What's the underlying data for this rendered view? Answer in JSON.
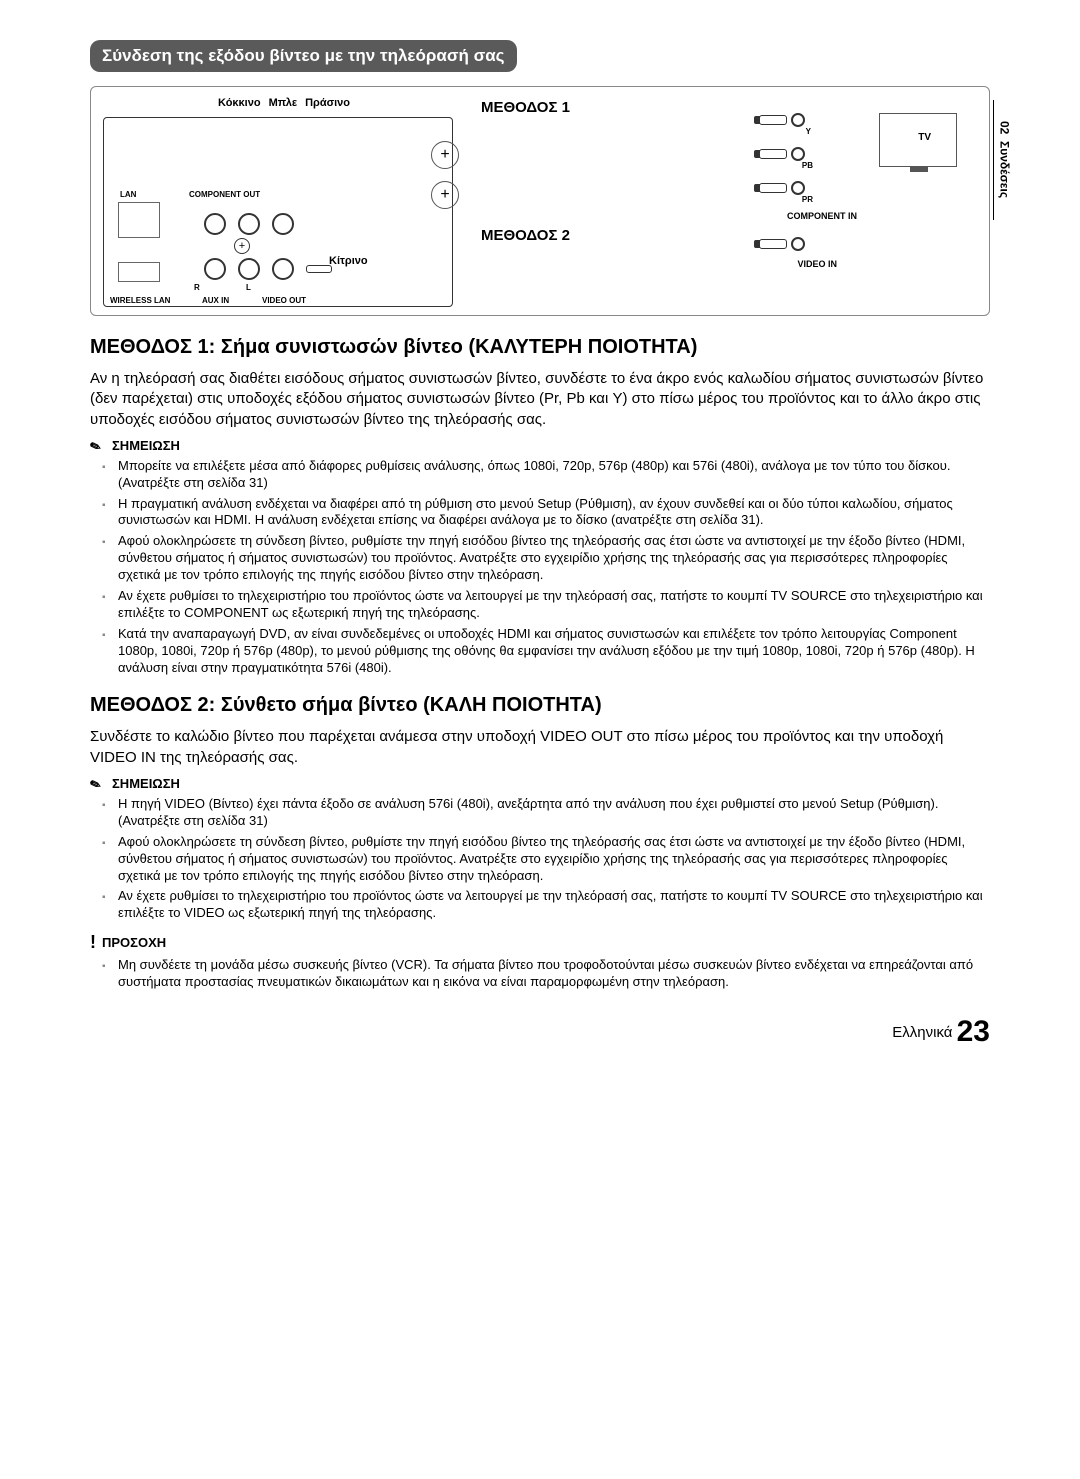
{
  "sideTab": {
    "chapter": "02",
    "label": "Συνδέσεις"
  },
  "sectionHeading": "Σύνδεση της εξόδου βίντεο με την τηλεόρασή σας",
  "diagram": {
    "colorLabels": {
      "red": "Κόκκινο",
      "blue": "Μπλε",
      "green": "Πράσινο",
      "yellow": "Κίτρινο"
    },
    "method1": "ΜΕΘΟΔΟΣ 1",
    "method2": "ΜΕΘΟΔΟΣ 2",
    "tvLabel": "TV",
    "componentIn": "COMPONENT IN",
    "videoIn": "VIDEO IN",
    "devicePorts": {
      "lan": "LAN",
      "componentOut": "COMPONENT OUT",
      "wirelessLan": "WIRELESS LAN",
      "auxIn": "AUX IN",
      "videoOut": "VIDEO OUT",
      "r": "R",
      "l": "L"
    },
    "tvPorts": {
      "y": "Y",
      "pb": "PB",
      "pr": "PR"
    }
  },
  "method1": {
    "title": "ΜΕΘΟΔΟΣ 1: Σήμα συνιστωσών βίντεο (ΚΑΛΥΤΕΡΗ ΠΟΙΟΤΗΤΑ)",
    "body": "Αν η τηλεόρασή σας διαθέτει εισόδους σήματος συνιστωσών βίντεο, συνδέστε το ένα άκρο ενός καλωδίου σήματος συνιστωσών βίντεο (δεν παρέχεται) στις υποδοχές εξόδου σήματος συνιστωσών βίντεο (Pr, Pb και Y) στο πίσω μέρος του προϊόντος και το άλλο άκρο στις υποδοχές εισόδου σήματος συνιστωσών βίντεο της τηλεόρασής σας.",
    "noteLabel": "ΣΗΜΕΙΩΣΗ",
    "notes": [
      "Μπορείτε να επιλέξετε μέσα από διάφορες ρυθμίσεις ανάλυσης, όπως 1080i, 720p, 576p (480p) και 576i (480i), ανάλογα με τον τύπο του δίσκου. (Ανατρέξτε στη σελίδα 31)",
      "Η πραγματική ανάλυση ενδέχεται να διαφέρει από τη ρύθμιση στο μενού Setup (Ρύθμιση), αν έχουν συνδεθεί και οι δύο τύποι καλωδίου, σήματος συνιστωσών και HDMI. Η ανάλυση ενδέχεται επίσης να διαφέρει ανάλογα με το δίσκο (ανατρέξτε στη σελίδα 31).",
      "Αφού ολοκληρώσετε τη σύνδεση βίντεο, ρυθμίστε την πηγή εισόδου βίντεο της τηλεόρασής σας έτσι ώστε να αντιστοιχεί με την έξοδο βίντεο (HDMI, σύνθετου σήματος ή σήματος συνιστωσών) του προϊόντος. Ανατρέξτε στο εγχειρίδιο χρήσης της τηλεόρασής σας για περισσότερες πληροφορίες σχετικά με τον τρόπο επιλογής της πηγής εισόδου βίντεο στην τηλεόραση.",
      "Αν έχετε ρυθμίσει το τηλεχειριστήριο του προϊόντος ώστε να λειτουργεί με την τηλεόρασή σας, πατήστε το κουμπί TV SOURCE στο τηλεχειριστήριο και επιλέξτε το COMPONENT ως εξωτερική πηγή της τηλεόρασης.",
      "Κατά την αναπαραγωγή DVD, αν είναι συνδεδεμένες οι υποδοχές HDMI και σήματος συνιστωσών και επιλέξετε τον τρόπο λειτουργίας Component 1080p, 1080i, 720p ή 576p (480p), το μενού ρύθμισης της οθόνης θα εμφανίσει την ανάλυση εξόδου με την τιμή 1080p, 1080i, 720p ή 576p (480p). Η ανάλυση είναι στην πραγματικότητα 576i (480i)."
    ]
  },
  "method2": {
    "title": "ΜΕΘΟΔΟΣ 2: Σύνθετο σήμα βίντεο (ΚΑΛΗ ΠΟΙΟΤΗΤΑ)",
    "body": "Συνδέστε το καλώδιο βίντεο που παρέχεται ανάμεσα στην υποδοχή VIDEO OUT στο πίσω μέρος του προϊόντος και την υποδοχή VIDEO IN της τηλεόρασής σας.",
    "noteLabel": "ΣΗΜΕΙΩΣΗ",
    "notes": [
      "Η πηγή VIDEO (Βίντεο) έχει πάντα έξοδο σε ανάλυση 576i (480i), ανεξάρτητα από την ανάλυση που έχει ρυθμιστεί στο μενού Setup (Ρύθμιση). (Ανατρέξτε στη σελίδα 31)",
      "Αφού ολοκληρώσετε τη σύνδεση βίντεο, ρυθμίστε την πηγή εισόδου βίντεο της τηλεόρασής σας έτσι ώστε να αντιστοιχεί με την έξοδο βίντεο (HDMI, σύνθετου σήματος ή σήματος συνιστωσών) του προϊόντος. Ανατρέξτε στο εγχειρίδιο χρήσης της τηλεόρασής σας για περισσότερες πληροφορίες σχετικά με τον τρόπο επιλογής της πηγής εισόδου βίντεο στην τηλεόραση.",
      "Αν έχετε ρυθμίσει το τηλεχειριστήριο του προϊόντος ώστε να λειτουργεί με την τηλεόρασή σας, πατήστε το κουμπί TV SOURCE στο τηλεχειριστήριο και επιλέξτε το VIDEO ως εξωτερική πηγή της τηλεόρασης."
    ],
    "cautionLabel": "ΠΡΟΣΟΧΗ",
    "cautions": [
      "Μη συνδέετε τη μονάδα μέσω συσκευής βίντεο (VCR). Τα σήματα βίντεο που τροφοδοτούνται μέσω συσκευών βίντεο ενδέχεται να επηρεάζονται από συστήματα προστασίας πνευματικών δικαιωμάτων και η εικόνα να είναι παραμορφωμένη στην τηλεόραση."
    ]
  },
  "footer": {
    "language": "Ελληνικά",
    "page": "23"
  }
}
